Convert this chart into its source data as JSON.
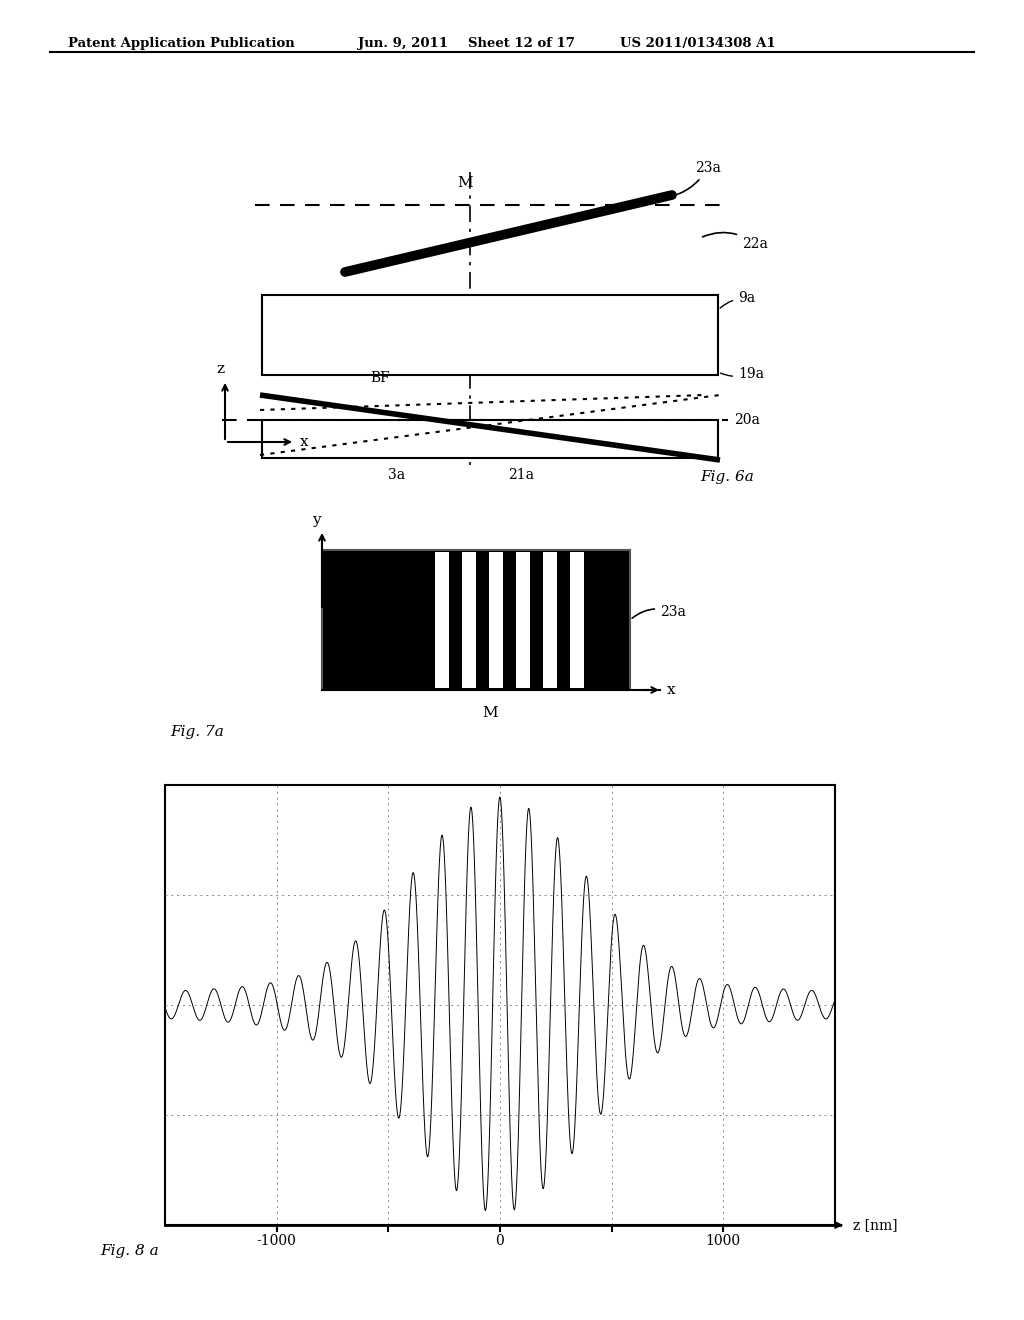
{
  "bg_color": "#ffffff",
  "header_text": "Patent Application Publication",
  "header_date": "Jun. 9, 2011",
  "header_sheet": "Sheet 12 of 17",
  "header_patent": "US 2011/0134308 A1",
  "fig6_label": "Fig. 6a",
  "fig7_label": "Fig. 7a",
  "fig8_label": "Fig. 8 a"
}
